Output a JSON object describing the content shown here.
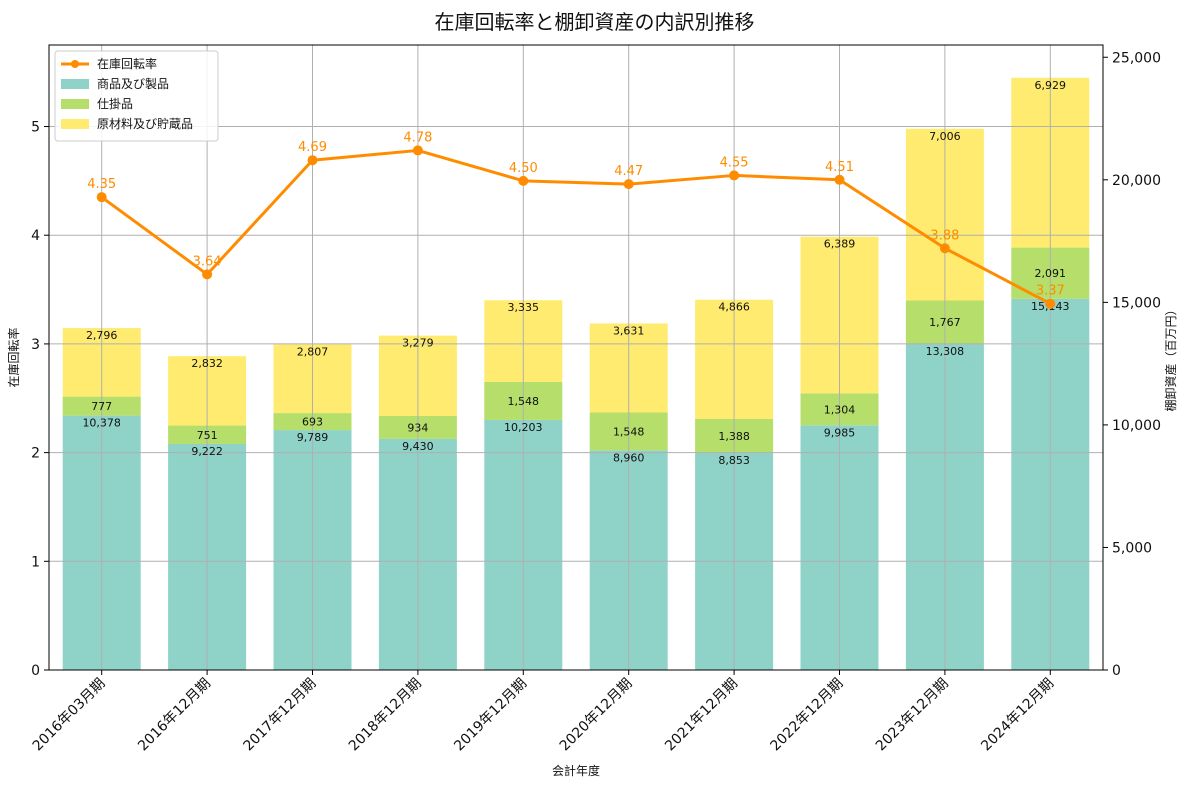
{
  "chart_data": {
    "type": "bar",
    "title": "在庫回転率と棚卸資産の内訳別推移",
    "xlabel": "会計年度",
    "ylabel_left": "在庫回転率",
    "ylabel_right": "棚卸資産（百万円）",
    "categories": [
      "2016年03月期",
      "2016年12月期",
      "2017年12月期",
      "2018年12月期",
      "2019年12月期",
      "2020年12月期",
      "2021年12月期",
      "2022年12月期",
      "2023年12月期",
      "2024年12月期"
    ],
    "ylim_left": [
      0,
      5.75
    ],
    "ylim_right": [
      0,
      25500
    ],
    "yticks_left": [
      0,
      1,
      2,
      3,
      4,
      5
    ],
    "yticks_right": [
      0,
      5000,
      10000,
      15000,
      20000,
      25000
    ],
    "ytick_labels_right": [
      "0",
      "5,000",
      "10,000",
      "15,000",
      "20,000",
      "25,000"
    ],
    "grid": true,
    "legend_position": "upper-left",
    "series": [
      {
        "name": "商品及び製品",
        "type": "bar",
        "axis": "right",
        "color": "#8fd3c8",
        "values": [
          10378,
          9222,
          9789,
          9430,
          10203,
          8960,
          8853,
          9985,
          13308,
          15143
        ],
        "labels": [
          "10,378",
          "9,222",
          "9,789",
          "9,430",
          "10,203",
          "8,960",
          "8,853",
          "9,985",
          "13,308",
          "15,143"
        ]
      },
      {
        "name": "仕掛品",
        "type": "bar",
        "axis": "right",
        "color": "#b5de6a",
        "values": [
          777,
          751,
          693,
          934,
          1548,
          1548,
          1388,
          1304,
          1767,
          2091
        ],
        "labels": [
          "777",
          "751",
          "693",
          "934",
          "1,548",
          "1,548",
          "1,388",
          "1,304",
          "1,767",
          "2,091"
        ]
      },
      {
        "name": "原材料及び貯蔵品",
        "type": "bar",
        "axis": "right",
        "color": "#ffeb70",
        "values": [
          2796,
          2832,
          2807,
          3279,
          3335,
          3631,
          4866,
          6389,
          7006,
          6929
        ],
        "labels": [
          "2,796",
          "2,832",
          "2,807",
          "3,279",
          "3,335",
          "3,631",
          "4,866",
          "6,389",
          "7,006",
          "6,929"
        ]
      },
      {
        "name": "在庫回転率",
        "type": "line",
        "axis": "left",
        "color": "#ff8c00",
        "values": [
          4.35,
          3.64,
          4.69,
          4.78,
          4.5,
          4.47,
          4.55,
          4.51,
          3.88,
          3.37
        ],
        "labels": [
          "4.35",
          "3.64",
          "4.69",
          "4.78",
          "4.50",
          "4.47",
          "4.55",
          "4.51",
          "3.88",
          "3.37"
        ]
      }
    ]
  }
}
